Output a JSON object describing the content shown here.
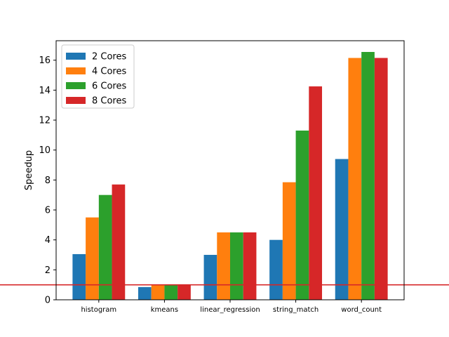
{
  "chart_data": {
    "type": "bar",
    "title": "",
    "xlabel": "",
    "ylabel": "Speedup",
    "ylim": [
      0,
      17.3
    ],
    "yticks": [
      0,
      2,
      4,
      6,
      8,
      10,
      12,
      14,
      16
    ],
    "categories": [
      "histogram",
      "kmeans",
      "linear_regression",
      "string_match",
      "word_count"
    ],
    "series": [
      {
        "name": "2 Cores",
        "color": "#1f77b4",
        "values": [
          3.05,
          0.85,
          3.0,
          4.0,
          9.4
        ]
      },
      {
        "name": "4 Cores",
        "color": "#ff7f0e",
        "values": [
          5.5,
          1.0,
          4.5,
          7.85,
          16.15
        ]
      },
      {
        "name": "6 Cores",
        "color": "#2ca02c",
        "values": [
          7.0,
          1.0,
          4.5,
          11.3,
          16.55
        ]
      },
      {
        "name": "8 Cores",
        "color": "#d62728",
        "values": [
          7.7,
          1.0,
          4.5,
          14.25,
          16.15
        ]
      }
    ],
    "reference_line": {
      "y": 1.0,
      "color": "#d62728"
    },
    "legend_position": "top-left",
    "grid": false
  }
}
